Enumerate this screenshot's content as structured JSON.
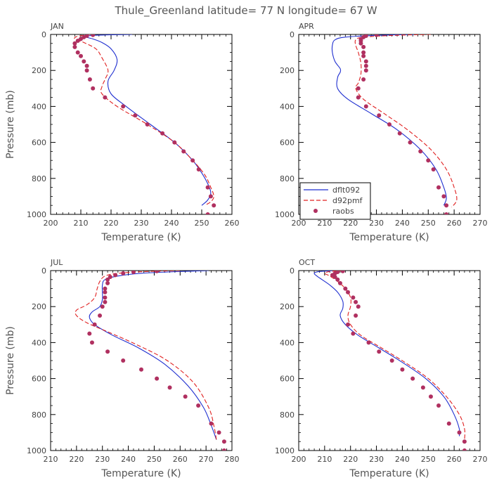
{
  "title": "Thule_Greenland  latitude= 77 N longitude= 67 W",
  "colors": {
    "dflt": "#1f2fd0",
    "d92": "#e02020",
    "raobs": "#b03060",
    "axis": "#000000",
    "text": "#444444"
  },
  "legend": {
    "panel": 1,
    "entries": [
      "dflt092",
      "d92pmf",
      "raobs"
    ]
  },
  "chart_data": [
    {
      "type": "line",
      "panel": "JAN",
      "xlabel": "Temperature (K)",
      "ylabel": "Pressure (mb)",
      "xlim": [
        200,
        260
      ],
      "xticks": [
        200,
        210,
        220,
        230,
        240,
        250,
        260
      ],
      "ylim": [
        0,
        1000
      ],
      "yticks": [
        0,
        200,
        400,
        600,
        800,
        1000
      ],
      "series": [
        {
          "name": "dflt092",
          "style": "solid",
          "x": [
            227,
            214,
            212,
            214,
            217,
            220,
            222,
            221,
            219,
            220,
            225,
            233,
            241,
            247,
            250,
            252,
            253,
            252,
            250
          ],
          "y": [
            0,
            5,
            15,
            25,
            45,
            80,
            140,
            200,
            260,
            330,
            400,
            500,
            600,
            700,
            770,
            830,
            880,
            920,
            950
          ]
        },
        {
          "name": "d92pmf",
          "style": "dashed",
          "x": [
            213,
            209,
            208,
            211,
            215,
            217,
            219,
            218,
            217,
            217,
            222,
            232,
            241,
            247,
            251,
            253,
            254,
            253,
            251
          ],
          "y": [
            0,
            10,
            25,
            45,
            80,
            130,
            200,
            250,
            290,
            330,
            400,
            500,
            600,
            700,
            780,
            850,
            900,
            930,
            950
          ]
        },
        {
          "name": "raobs",
          "style": "dots",
          "x": [
            214,
            212,
            211,
            210,
            209,
            208,
            208,
            209,
            210,
            211,
            212,
            212,
            213,
            214,
            218,
            224,
            228,
            232,
            237,
            241,
            244,
            247,
            249,
            252,
            253,
            254,
            252
          ],
          "y": [
            3,
            8,
            15,
            25,
            35,
            50,
            70,
            100,
            120,
            150,
            175,
            200,
            250,
            300,
            350,
            400,
            450,
            500,
            550,
            600,
            650,
            700,
            750,
            850,
            900,
            950,
            1000
          ]
        }
      ]
    },
    {
      "type": "line",
      "panel": "APR",
      "xlabel": "Temperature (K)",
      "ylabel": "",
      "xlim": [
        200,
        270
      ],
      "xticks": [
        200,
        210,
        220,
        230,
        240,
        250,
        260,
        270
      ],
      "ylim": [
        0,
        1000
      ],
      "yticks": [
        0,
        200,
        400,
        600,
        800,
        1000
      ],
      "series": [
        {
          "name": "dflt092",
          "style": "solid",
          "x": [
            245,
            230,
            218,
            214,
            213,
            213,
            214,
            216,
            216,
            215,
            215,
            219,
            228,
            238,
            247,
            253,
            256,
            257,
            256
          ],
          "y": [
            0,
            5,
            15,
            30,
            60,
            100,
            150,
            190,
            210,
            240,
            300,
            360,
            440,
            530,
            640,
            750,
            850,
            910,
            950
          ]
        },
        {
          "name": "d92pmf",
          "style": "dashed",
          "x": [
            251,
            237,
            225,
            222,
            222,
            223,
            224,
            224,
            223,
            222,
            225,
            233,
            242,
            251,
            257,
            260,
            261,
            259
          ],
          "y": [
            0,
            5,
            15,
            30,
            60,
            100,
            160,
            220,
            270,
            300,
            360,
            440,
            530,
            640,
            750,
            850,
            920,
            960
          ]
        },
        {
          "name": "raobs",
          "style": "dots",
          "x": [
            230,
            226,
            225,
            224,
            224,
            224,
            225,
            225,
            225,
            226,
            226,
            226,
            225,
            223,
            223,
            226,
            231,
            235,
            239,
            243,
            247,
            250,
            252,
            254,
            256,
            257,
            257
          ],
          "y": [
            3,
            8,
            15,
            25,
            35,
            50,
            70,
            100,
            120,
            150,
            175,
            200,
            250,
            300,
            350,
            400,
            450,
            500,
            550,
            600,
            650,
            700,
            750,
            850,
            900,
            950,
            1000
          ]
        }
      ]
    },
    {
      "type": "line",
      "panel": "JUL",
      "xlabel": "Temperature (K)",
      "ylabel": "Pressure (mb)",
      "xlim": [
        210,
        280
      ],
      "xticks": [
        210,
        220,
        230,
        240,
        250,
        260,
        270,
        280
      ],
      "ylim": [
        0,
        1000
      ],
      "yticks": [
        0,
        200,
        400,
        600,
        800,
        1000
      ],
      "series": [
        {
          "name": "dflt092",
          "style": "solid",
          "x": [
            271,
            260,
            245,
            236,
            231,
            230,
            230,
            230,
            229,
            226,
            225,
            227,
            234,
            244,
            254,
            263,
            269,
            272,
            274
          ],
          "y": [
            0,
            5,
            15,
            30,
            50,
            80,
            120,
            160,
            200,
            230,
            260,
            300,
            360,
            430,
            520,
            640,
            760,
            860,
            940
          ]
        },
        {
          "name": "d92pmf",
          "style": "dashed",
          "x": [
            260,
            247,
            236,
            231,
            229,
            228,
            227,
            224,
            220,
            220,
            224,
            232,
            243,
            255,
            265,
            271,
            273,
            274
          ],
          "y": [
            0,
            5,
            15,
            30,
            60,
            100,
            150,
            190,
            220,
            250,
            290,
            340,
            410,
            500,
            620,
            760,
            860,
            940
          ]
        },
        {
          "name": "raobs",
          "style": "dots",
          "x": [
            251,
            242,
            238,
            235,
            233,
            232,
            232,
            231,
            231,
            231,
            231,
            230,
            229,
            227,
            225,
            226,
            232,
            238,
            245,
            251,
            256,
            262,
            267,
            272,
            275,
            277,
            277
          ],
          "y": [
            3,
            8,
            15,
            25,
            35,
            50,
            70,
            100,
            120,
            150,
            175,
            200,
            250,
            300,
            350,
            400,
            450,
            500,
            550,
            600,
            650,
            700,
            750,
            850,
            900,
            950,
            1000
          ]
        }
      ]
    },
    {
      "type": "line",
      "panel": "OCT",
      "xlabel": "Temperature (K)",
      "ylabel": "",
      "xlim": [
        200,
        270
      ],
      "xticks": [
        200,
        210,
        220,
        230,
        240,
        250,
        260,
        270
      ],
      "ylim": [
        0,
        1000
      ],
      "yticks": [
        0,
        200,
        400,
        600,
        800,
        1000
      ],
      "series": [
        {
          "name": "dflt092",
          "style": "solid",
          "x": [
            214,
            208,
            206,
            207,
            209,
            212,
            215,
            217,
            217,
            216,
            218,
            223,
            231,
            240,
            249,
            256,
            260,
            262,
            262
          ],
          "y": [
            0,
            5,
            15,
            30,
            50,
            80,
            120,
            170,
            210,
            250,
            300,
            360,
            430,
            510,
            600,
            700,
            800,
            880,
            920
          ]
        },
        {
          "name": "d92pmf",
          "style": "dashed",
          "x": [
            217,
            212,
            210,
            212,
            215,
            218,
            220,
            220,
            219,
            220,
            224,
            232,
            241,
            250,
            257,
            262,
            264,
            264
          ],
          "y": [
            0,
            5,
            15,
            30,
            60,
            100,
            150,
            200,
            250,
            300,
            360,
            430,
            510,
            600,
            700,
            800,
            880,
            940
          ]
        },
        {
          "name": "raobs",
          "style": "dots",
          "x": [
            217,
            215,
            214,
            213,
            214,
            215,
            216,
            218,
            219,
            221,
            222,
            223,
            222,
            219,
            221,
            227,
            231,
            236,
            240,
            244,
            248,
            251,
            254,
            258,
            262,
            264,
            264
          ],
          "y": [
            3,
            8,
            15,
            25,
            35,
            50,
            70,
            100,
            120,
            150,
            175,
            200,
            250,
            300,
            350,
            400,
            450,
            500,
            550,
            600,
            650,
            700,
            750,
            850,
            900,
            950,
            1000
          ]
        }
      ]
    }
  ]
}
